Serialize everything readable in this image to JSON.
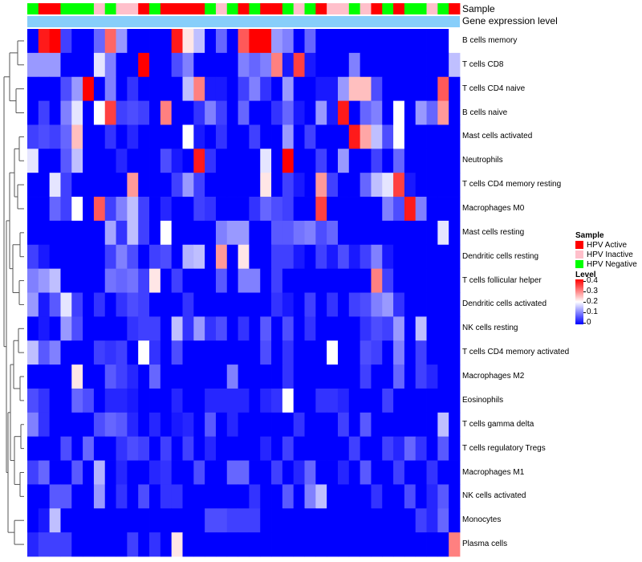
{
  "annotations": {
    "sample_label": "Sample",
    "gene_label": "Gene expression level"
  },
  "legend": {
    "sample_title": "Sample",
    "items": [
      {
        "label": "HPV Active",
        "color": "#ff0000"
      },
      {
        "label": "HPV Inactive",
        "color": "#ffc0cb"
      },
      {
        "label": "HPV Negative",
        "color": "#00ff00"
      }
    ],
    "level_title": "Level",
    "level_ticks": [
      "0.4",
      "0.3",
      "0.2",
      "0.1",
      "0"
    ]
  },
  "chart_data": {
    "type": "heatmap",
    "value_range": [
      0,
      0.4
    ],
    "colors": {
      "low": "#0000ff",
      "mid": "#ffffff",
      "high": "#ff0000",
      "gene_bar": "#87cefa"
    },
    "sample_groups": [
      "Negative",
      "Active",
      "Active",
      "Negative",
      "Negative",
      "Negative",
      "Inactive",
      "Negative",
      "Inactive",
      "Inactive",
      "Active",
      "Negative",
      "Active",
      "Active",
      "Active",
      "Active",
      "Negative",
      "Inactive",
      "Negative",
      "Active",
      "Negative",
      "Active",
      "Active",
      "Negative",
      "Inactive",
      "Negative",
      "Active",
      "Inactive",
      "Inactive",
      "Negative",
      "Inactive",
      "Active",
      "Negative",
      "Active",
      "Negative",
      "Negative",
      "Inactive",
      "Negative",
      "Active"
    ],
    "rows": [
      "B cells memory",
      "T cells CD8",
      "T cells CD4 naive",
      "B cells naive",
      "Mast cells activated",
      "Neutrophils",
      "T cells CD4 memory resting",
      "Macrophages M0",
      "Mast cells resting",
      "Dendritic cells resting",
      "T cells follicular helper",
      "Dendritic cells activated",
      "NK cells resting",
      "T cells CD4 memory activated",
      "Macrophages M2",
      "Eosinophils",
      "T cells gamma delta",
      "T cells regulatory  Tregs",
      "Macrophages M1",
      "NK cells activated",
      "Monocytes",
      "Plasma cells"
    ],
    "values": [
      [
        0,
        0.38,
        0.4,
        0.05,
        0,
        0,
        0.08,
        0.32,
        0.12,
        0,
        0,
        0,
        0,
        0.38,
        0.22,
        0.15,
        0,
        0.08,
        0,
        0.33,
        0.4,
        0.4,
        0.12,
        0.1,
        0,
        0.08,
        0,
        0,
        0,
        0,
        0,
        0,
        0,
        0,
        0,
        0,
        0,
        0,
        0.2
      ],
      [
        0.12,
        0.12,
        0.12,
        0,
        0,
        0,
        0.18,
        0.1,
        0,
        0,
        0.4,
        0,
        0,
        0.06,
        0.1,
        0,
        0,
        0,
        0,
        0.1,
        0.08,
        0.1,
        0.3,
        0.02,
        0.35,
        0.02,
        0,
        0,
        0,
        0.1,
        0,
        0,
        0,
        0,
        0,
        0,
        0,
        0,
        0.15
      ],
      [
        0,
        0,
        0,
        0.06,
        0.12,
        0.4,
        0,
        0.1,
        0,
        0.04,
        0,
        0,
        0,
        0,
        0.15,
        0.3,
        0.02,
        0.02,
        0,
        0.05,
        0.1,
        0.04,
        0,
        0.12,
        0,
        0,
        0.02,
        0.02,
        0.12,
        0.25,
        0.25,
        0.06,
        0,
        0,
        0,
        0,
        0,
        0.33,
        0
      ],
      [
        0,
        0.05,
        0,
        0.1,
        0.18,
        0,
        0.2,
        0.35,
        0.05,
        0.06,
        0.05,
        0,
        0.3,
        0,
        0,
        0.04,
        0.1,
        0.05,
        0,
        0.08,
        0,
        0,
        0.04,
        0.08,
        0.02,
        0,
        0.12,
        0.02,
        0.38,
        0,
        0.08,
        0.1,
        0,
        0.2,
        0,
        0.12,
        0.08,
        0.28,
        0
      ],
      [
        0.05,
        0.06,
        0.05,
        0.08,
        0.25,
        0,
        0,
        0.04,
        0,
        0.03,
        0,
        0,
        0,
        0,
        0.2,
        0.02,
        0,
        0.04,
        0,
        0,
        0.05,
        0,
        0,
        0.12,
        0,
        0.05,
        0,
        0,
        0,
        0.38,
        0.27,
        0.15,
        0.06,
        0.2,
        0,
        0,
        0,
        0,
        0
      ],
      [
        0.18,
        0,
        0,
        0.07,
        0.15,
        0,
        0,
        0,
        0.03,
        0,
        0,
        0,
        0.06,
        0.02,
        0,
        0.38,
        0.04,
        0,
        0,
        0,
        0,
        0.18,
        0,
        0.4,
        0,
        0,
        0.05,
        0,
        0.12,
        0,
        0,
        0.05,
        0,
        0.08,
        0,
        0,
        0,
        0,
        0
      ],
      [
        0,
        0,
        0.18,
        0.05,
        0,
        0,
        0,
        0,
        0,
        0.28,
        0,
        0,
        0,
        0.05,
        0.12,
        0.05,
        0,
        0,
        0,
        0,
        0,
        0.22,
        0,
        0.05,
        0.02,
        0,
        0.28,
        0.05,
        0,
        0,
        0.08,
        0.15,
        0.18,
        0.35,
        0.02,
        0,
        0,
        0,
        0
      ],
      [
        0,
        0,
        0.08,
        0.05,
        0.2,
        0,
        0.33,
        0.05,
        0.1,
        0.15,
        0.05,
        0,
        0.03,
        0,
        0,
        0.05,
        0.04,
        0,
        0,
        0,
        0.04,
        0.08,
        0.06,
        0.05,
        0,
        0,
        0.35,
        0,
        0,
        0,
        0,
        0,
        0.1,
        0.06,
        0.38,
        0.1,
        0,
        0,
        0
      ],
      [
        0,
        0,
        0,
        0,
        0,
        0,
        0,
        0.13,
        0.04,
        0.15,
        0.05,
        0,
        0.2,
        0,
        0,
        0,
        0,
        0.1,
        0.12,
        0.12,
        0,
        0,
        0.07,
        0.07,
        0.09,
        0.1,
        0.06,
        0.08,
        0,
        0,
        0,
        0,
        0,
        0,
        0,
        0,
        0,
        0.18,
        0
      ],
      [
        0.05,
        0.02,
        0,
        0,
        0,
        0,
        0,
        0.05,
        0.1,
        0.06,
        0,
        0.05,
        0.06,
        0,
        0.14,
        0.15,
        0,
        0.28,
        0,
        0.22,
        0,
        0,
        0.05,
        0.05,
        0.02,
        0,
        0.05,
        0.02,
        0.06,
        0.02,
        0.05,
        0.1,
        0.02,
        0,
        0,
        0,
        0,
        0,
        0
      ],
      [
        0.1,
        0.12,
        0.15,
        0,
        0,
        0,
        0,
        0.09,
        0.08,
        0.09,
        0.05,
        0.22,
        0,
        0.05,
        0,
        0,
        0,
        0.07,
        0,
        0.1,
        0.1,
        0,
        0.05,
        0,
        0,
        0,
        0,
        0,
        0,
        0,
        0,
        0.3,
        0.05,
        0,
        0,
        0,
        0,
        0,
        0
      ],
      [
        0.12,
        0.02,
        0.07,
        0.18,
        0.05,
        0,
        0.04,
        0,
        0.04,
        0.06,
        0.05,
        0,
        0,
        0,
        0.04,
        0,
        0,
        0,
        0,
        0,
        0,
        0,
        0.04,
        0.02,
        0,
        0.05,
        0,
        0.04,
        0,
        0.05,
        0.06,
        0.1,
        0.12,
        0.04,
        0,
        0,
        0,
        0,
        0
      ],
      [
        0,
        0.02,
        0,
        0.12,
        0.06,
        0,
        0,
        0,
        0,
        0.04,
        0.05,
        0.05,
        0,
        0.15,
        0.04,
        0.12,
        0.04,
        0.06,
        0,
        0.04,
        0,
        0.07,
        0,
        0.06,
        0,
        0.04,
        0,
        0,
        0,
        0,
        0.04,
        0.06,
        0.05,
        0.12,
        0,
        0.15,
        0,
        0,
        0
      ],
      [
        0.15,
        0.07,
        0.1,
        0,
        0,
        0,
        0.05,
        0.04,
        0.05,
        0,
        0.2,
        0.04,
        0,
        0.06,
        0,
        0,
        0,
        0,
        0,
        0,
        0,
        0.06,
        0,
        0.04,
        0,
        0,
        0,
        0.2,
        0,
        0,
        0.06,
        0.05,
        0,
        0.1,
        0,
        0.05,
        0,
        0,
        0
      ],
      [
        0,
        0,
        0,
        0,
        0.22,
        0,
        0,
        0.07,
        0.05,
        0.03,
        0,
        0.08,
        0,
        0,
        0,
        0,
        0,
        0,
        0.1,
        0,
        0,
        0,
        0,
        0.04,
        0,
        0,
        0,
        0,
        0,
        0,
        0.05,
        0,
        0,
        0.08,
        0,
        0.05,
        0.03,
        0,
        0
      ],
      [
        0.06,
        0.04,
        0,
        0,
        0.08,
        0.06,
        0,
        0.03,
        0.03,
        0.02,
        0,
        0,
        0,
        0.03,
        0,
        0,
        0.03,
        0.03,
        0.03,
        0.03,
        0,
        0.03,
        0.04,
        0.2,
        0,
        0,
        0.04,
        0.04,
        0.03,
        0,
        0,
        0,
        0.05,
        0,
        0,
        0,
        0,
        0,
        0
      ],
      [
        0.1,
        0.04,
        0,
        0,
        0,
        0,
        0.06,
        0.08,
        0.07,
        0.03,
        0,
        0.03,
        0,
        0.02,
        0.03,
        0,
        0.07,
        0,
        0.03,
        0,
        0,
        0,
        0,
        0,
        0.04,
        0,
        0,
        0,
        0.05,
        0,
        0.07,
        0,
        0,
        0,
        0,
        0,
        0,
        0.15,
        0
      ],
      [
        0,
        0,
        0,
        0.06,
        0,
        0.08,
        0,
        0,
        0.04,
        0.06,
        0.05,
        0,
        0.05,
        0,
        0.05,
        0,
        0.03,
        0,
        0,
        0,
        0,
        0.03,
        0,
        0.05,
        0,
        0,
        0,
        0,
        0,
        0.05,
        0,
        0,
        0.05,
        0.03,
        0.08,
        0.04,
        0,
        0.07,
        0
      ],
      [
        0.05,
        0.08,
        0,
        0,
        0.07,
        0,
        0.14,
        0,
        0.03,
        0,
        0,
        0.03,
        0.04,
        0,
        0,
        0.06,
        0,
        0,
        0.08,
        0.08,
        0,
        0,
        0.05,
        0,
        0.03,
        0.08,
        0,
        0,
        0.03,
        0,
        0.07,
        0,
        0,
        0.05,
        0,
        0,
        0.04,
        0,
        0
      ],
      [
        0,
        0,
        0.07,
        0.07,
        0,
        0,
        0.12,
        0,
        0.04,
        0,
        0.06,
        0,
        0.04,
        0.04,
        0,
        0,
        0,
        0,
        0,
        0,
        0.04,
        0,
        0,
        0.07,
        0,
        0.1,
        0.15,
        0,
        0,
        0,
        0,
        0.04,
        0,
        0,
        0.06,
        0,
        0.03,
        0.07,
        0
      ],
      [
        0,
        0.02,
        0.15,
        0,
        0,
        0,
        0,
        0,
        0,
        0,
        0,
        0,
        0,
        0,
        0,
        0,
        0.06,
        0.06,
        0.05,
        0.05,
        0.05,
        0,
        0,
        0,
        0,
        0,
        0,
        0,
        0,
        0,
        0,
        0,
        0,
        0,
        0,
        0.05,
        0.03,
        0.08,
        0
      ],
      [
        0.03,
        0.05,
        0.05,
        0.05,
        0,
        0,
        0,
        0,
        0,
        0.05,
        0,
        0.04,
        0,
        0.22,
        0,
        0,
        0,
        0,
        0,
        0,
        0,
        0,
        0,
        0,
        0,
        0,
        0,
        0,
        0,
        0,
        0,
        0,
        0,
        0,
        0,
        0,
        0,
        0,
        0.3
      ]
    ]
  }
}
